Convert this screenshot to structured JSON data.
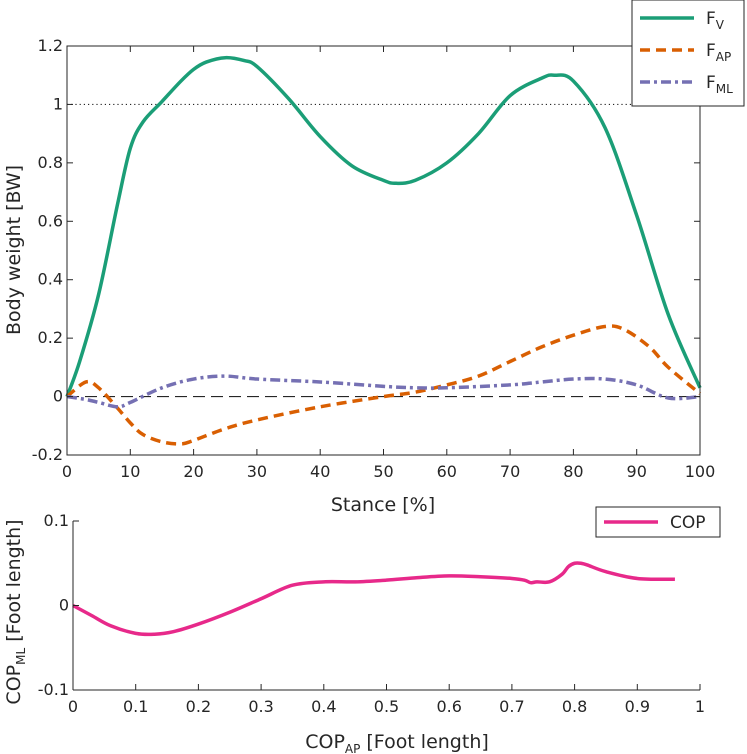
{
  "chart_data": [
    {
      "type": "line",
      "xlabel": "Stance [%]",
      "ylabel": "Body weight [BW]",
      "xlim": [
        0,
        100
      ],
      "ylim": [
        -0.2,
        1.2
      ],
      "xticks": [
        "0",
        "10",
        "20",
        "30",
        "40",
        "50",
        "60",
        "70",
        "80",
        "90",
        "100"
      ],
      "yticks": [
        "-0.2",
        "0",
        "0.2",
        "0.4",
        "0.6",
        "0.8",
        "1",
        "1.2"
      ],
      "reference_lines": [
        {
          "y": 1,
          "style": "dotted",
          "color": "#262626"
        },
        {
          "y": 0,
          "style": "dashed",
          "color": "#262626"
        }
      ],
      "legend": {
        "position": "top-right"
      },
      "series": [
        {
          "name": "F",
          "sub": "V",
          "color": "#1b9e77",
          "dash": "solid",
          "x": [
            0,
            2,
            5,
            8,
            10,
            12,
            15,
            18,
            20,
            22,
            25,
            28,
            30,
            35,
            40,
            45,
            50,
            52,
            55,
            60,
            65,
            70,
            75,
            77,
            80,
            85,
            90,
            95,
            100
          ],
          "y": [
            0,
            0.12,
            0.35,
            0.66,
            0.85,
            0.94,
            1.01,
            1.08,
            1.12,
            1.145,
            1.16,
            1.15,
            1.13,
            1.02,
            0.89,
            0.79,
            0.74,
            0.73,
            0.74,
            0.8,
            0.9,
            1.03,
            1.09,
            1.1,
            1.08,
            0.92,
            0.62,
            0.28,
            0.03
          ]
        },
        {
          "name": "F",
          "sub": "AP",
          "color": "#d95f02",
          "dash": "dashed",
          "x": [
            0,
            3,
            5,
            8,
            10,
            12,
            15,
            18,
            20,
            25,
            30,
            40,
            50,
            55,
            60,
            65,
            70,
            75,
            80,
            85,
            88,
            92,
            95,
            100
          ],
          "y": [
            0,
            0.05,
            0.03,
            -0.04,
            -0.09,
            -0.13,
            -0.155,
            -0.162,
            -0.15,
            -0.11,
            -0.08,
            -0.035,
            0,
            0.015,
            0.04,
            0.07,
            0.12,
            0.17,
            0.21,
            0.24,
            0.23,
            0.17,
            0.1,
            0.01
          ]
        },
        {
          "name": "F",
          "sub": "ML",
          "color": "#7570b3",
          "dash": "dashdot",
          "x": [
            0,
            3,
            5,
            8,
            10,
            15,
            20,
            25,
            30,
            40,
            50,
            55,
            60,
            70,
            75,
            80,
            85,
            90,
            95,
            100
          ],
          "y": [
            0,
            -0.01,
            -0.02,
            -0.035,
            -0.02,
            0.03,
            0.06,
            0.07,
            0.06,
            0.05,
            0.035,
            0.03,
            0.03,
            0.04,
            0.05,
            0.06,
            0.06,
            0.04,
            -0.005,
            0
          ]
        }
      ]
    },
    {
      "type": "line",
      "xlabel": "COP",
      "xlabel_sub": "AP",
      "xlabel_suffix": " [Foot length]",
      "ylabel": "COP",
      "ylabel_sub": "ML",
      "ylabel_suffix": " [Foot length]",
      "xlim": [
        0,
        1
      ],
      "ylim": [
        -0.1,
        0.1
      ],
      "xticks": [
        "0",
        "0.1",
        "0.2",
        "0.3",
        "0.4",
        "0.5",
        "0.6",
        "0.7",
        "0.8",
        "0.9",
        "1"
      ],
      "yticks": [
        "-0.1",
        "0",
        "0.1"
      ],
      "legend": {
        "position": "top-right"
      },
      "series": [
        {
          "name": "COP",
          "color": "#e7298a",
          "dash": "solid",
          "x": [
            0,
            0.03,
            0.06,
            0.1,
            0.13,
            0.16,
            0.2,
            0.25,
            0.3,
            0.35,
            0.4,
            0.45,
            0.5,
            0.55,
            0.6,
            0.65,
            0.7,
            0.72,
            0.73,
            0.74,
            0.76,
            0.78,
            0.79,
            0.8,
            0.81,
            0.82,
            0.85,
            0.9,
            0.96
          ],
          "y": [
            0,
            -0.012,
            -0.024,
            -0.033,
            -0.034,
            -0.031,
            -0.022,
            -0.008,
            0.008,
            0.024,
            0.028,
            0.028,
            0.03,
            0.033,
            0.035,
            0.034,
            0.032,
            0.03,
            0.027,
            0.028,
            0.028,
            0.037,
            0.046,
            0.05,
            0.05,
            0.048,
            0.04,
            0.032,
            0.031
          ]
        }
      ]
    }
  ]
}
